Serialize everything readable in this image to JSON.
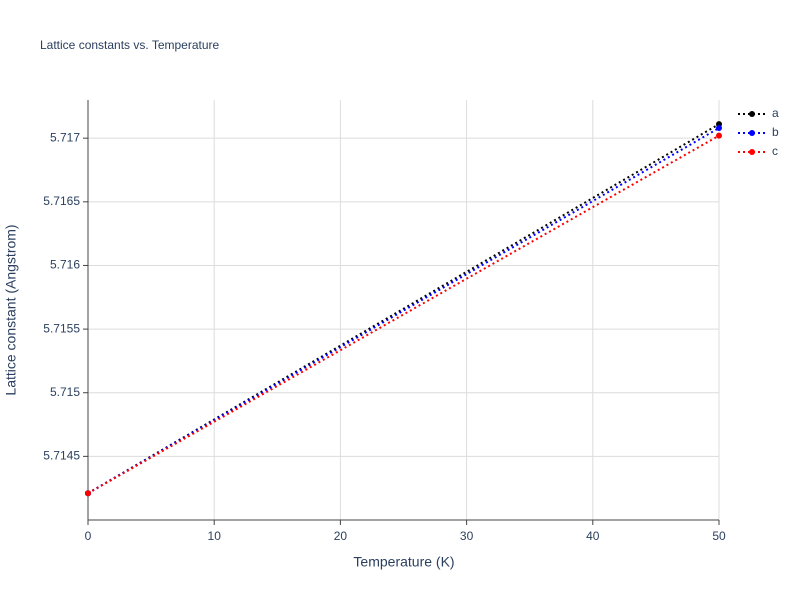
{
  "chart_data": {
    "type": "line",
    "title": "Lattice constants vs. Temperature",
    "x_label": "Temperature (K)",
    "y_label": "Lattice constant (Angstrom)",
    "x": [
      0,
      50
    ],
    "series": [
      {
        "name": "a",
        "color": "#000000",
        "values": [
          5.71421,
          5.71711
        ]
      },
      {
        "name": "b",
        "color": "#0000ff",
        "values": [
          5.71421,
          5.71708
        ]
      },
      {
        "name": "c",
        "color": "#ff0000",
        "values": [
          5.71421,
          5.71702
        ]
      }
    ],
    "xlim": [
      0,
      50
    ],
    "xticks": [
      0,
      10,
      20,
      30,
      40,
      50
    ],
    "ylim": [
      5.714,
      5.7173
    ],
    "yticks": [
      5.7145,
      5.715,
      5.7155,
      5.716,
      5.7165,
      5.717
    ],
    "grid": true,
    "legend": "right"
  }
}
